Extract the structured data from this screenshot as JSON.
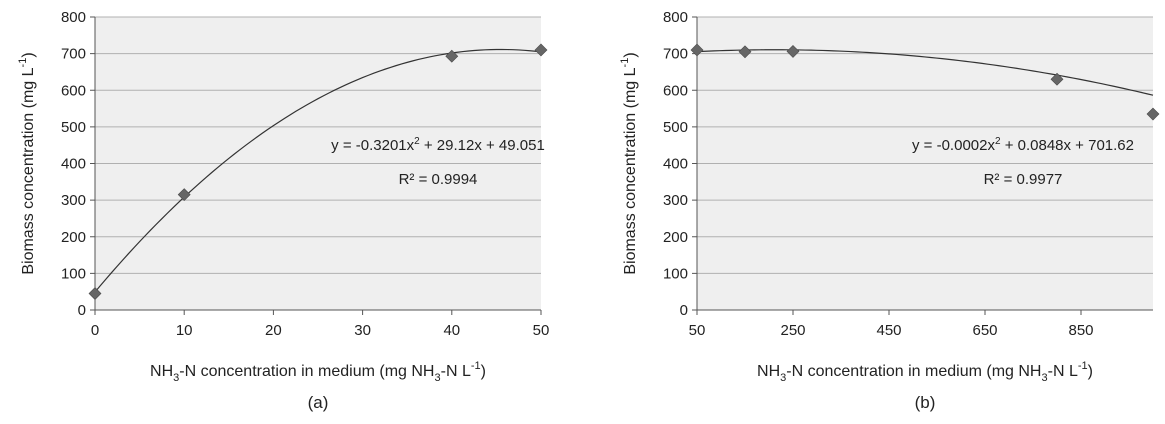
{
  "chart_data": [
    {
      "type": "scatter",
      "panel_label": "(a)",
      "title": "",
      "xlabel": {
        "pre": "NH",
        "sub1": "3",
        "mid": "-N concentration in medium (mg NH",
        "sub2": "3",
        "mid2": "-N L",
        "sup": "-1",
        "post": ")"
      },
      "ylabel": {
        "pre": "Biomass concentration (mg L",
        "sup": "-1",
        "post": ")"
      },
      "xlim": [
        0,
        50
      ],
      "ylim": [
        0,
        800
      ],
      "xticks": [
        0,
        10,
        20,
        30,
        40,
        50
      ],
      "yticks": [
        0,
        100,
        200,
        300,
        400,
        500,
        600,
        700,
        800
      ],
      "grid": true,
      "series": [
        {
          "x": [
            0,
            10,
            40,
            50
          ],
          "y": [
            45,
            315,
            693,
            710
          ]
        }
      ],
      "trendline": {
        "type": "polynomial",
        "a": -0.3201,
        "b": 29.12,
        "c": 49.051,
        "x_range": [
          0,
          50
        ]
      },
      "equation": {
        "pre": "y = -0.3201x",
        "sup": "2",
        "post": " + 29.12x + 49.051"
      },
      "r2": "R² = 0.9994",
      "colors": {
        "plot_bg": "#efefef",
        "marker": "#666666",
        "line": "#333333",
        "grid": "#b0b0b0"
      }
    },
    {
      "type": "scatter",
      "panel_label": "(b)",
      "title": "",
      "xlabel": {
        "pre": "NH",
        "sub1": "3",
        "mid": "-N concentration in medium (mg NH",
        "sub2": "3",
        "mid2": "-N L",
        "sup": "-1",
        "post": ")"
      },
      "ylabel": {
        "pre": "Biomass concentration (mg L",
        "sup": "-1",
        "post": ")"
      },
      "xlim": [
        50,
        1000
      ],
      "ylim": [
        0,
        800
      ],
      "xticks": [
        50,
        250,
        450,
        650,
        850
      ],
      "yticks": [
        0,
        100,
        200,
        300,
        400,
        500,
        600,
        700,
        800
      ],
      "grid": true,
      "series": [
        {
          "x": [
            50,
            150,
            250,
            800,
            1000
          ],
          "y": [
            710,
            705,
            706,
            630,
            535
          ]
        }
      ],
      "trendline": {
        "type": "polynomial",
        "a": -0.0002,
        "b": 0.0848,
        "c": 701.62,
        "x_range": [
          50,
          1000
        ]
      },
      "equation": {
        "pre": "y = -0.0002x",
        "sup": "2",
        "post": " + 0.0848x + 701.62"
      },
      "r2": "R² = 0.9977",
      "colors": {
        "plot_bg": "#efefef",
        "marker": "#666666",
        "line": "#333333",
        "grid": "#b0b0b0"
      }
    }
  ]
}
